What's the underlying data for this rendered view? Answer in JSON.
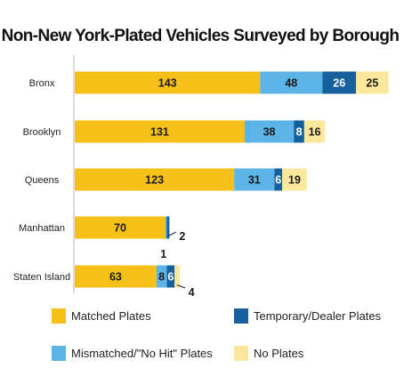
{
  "chart_data": {
    "type": "bar",
    "orientation": "horizontal",
    "stacked": true,
    "title": "Non-New York-Plated Vehicles Surveyed by Borough",
    "categories": [
      "Bronx",
      "Brooklyn",
      "Queens",
      "Manhattan",
      "Staten Island"
    ],
    "series": [
      {
        "name": "Matched Plates",
        "color": "#f5c118",
        "values": [
          143,
          131,
          123,
          70,
          63
        ]
      },
      {
        "name": "Mismatched/\"No Hit\" Plates",
        "color": "#5bb4e5",
        "values": [
          48,
          38,
          31,
          1,
          8
        ]
      },
      {
        "name": "Temporary/Dealer Plates",
        "color": "#17609f",
        "values": [
          26,
          8,
          6,
          2,
          6
        ]
      },
      {
        "name": "No Plates",
        "color": "#fbe89c",
        "values": [
          25,
          16,
          19,
          0,
          4
        ]
      }
    ],
    "data_labels": [
      [
        "143",
        "48",
        "26",
        "25"
      ],
      [
        "131",
        "38",
        "8",
        "16"
      ],
      [
        "123",
        "31",
        "6",
        "19"
      ],
      [
        "70",
        "1",
        "2",
        ""
      ],
      [
        "63",
        "8",
        "6",
        "4"
      ]
    ],
    "grid": false,
    "axis_visible": false,
    "legend_position": "bottom"
  }
}
